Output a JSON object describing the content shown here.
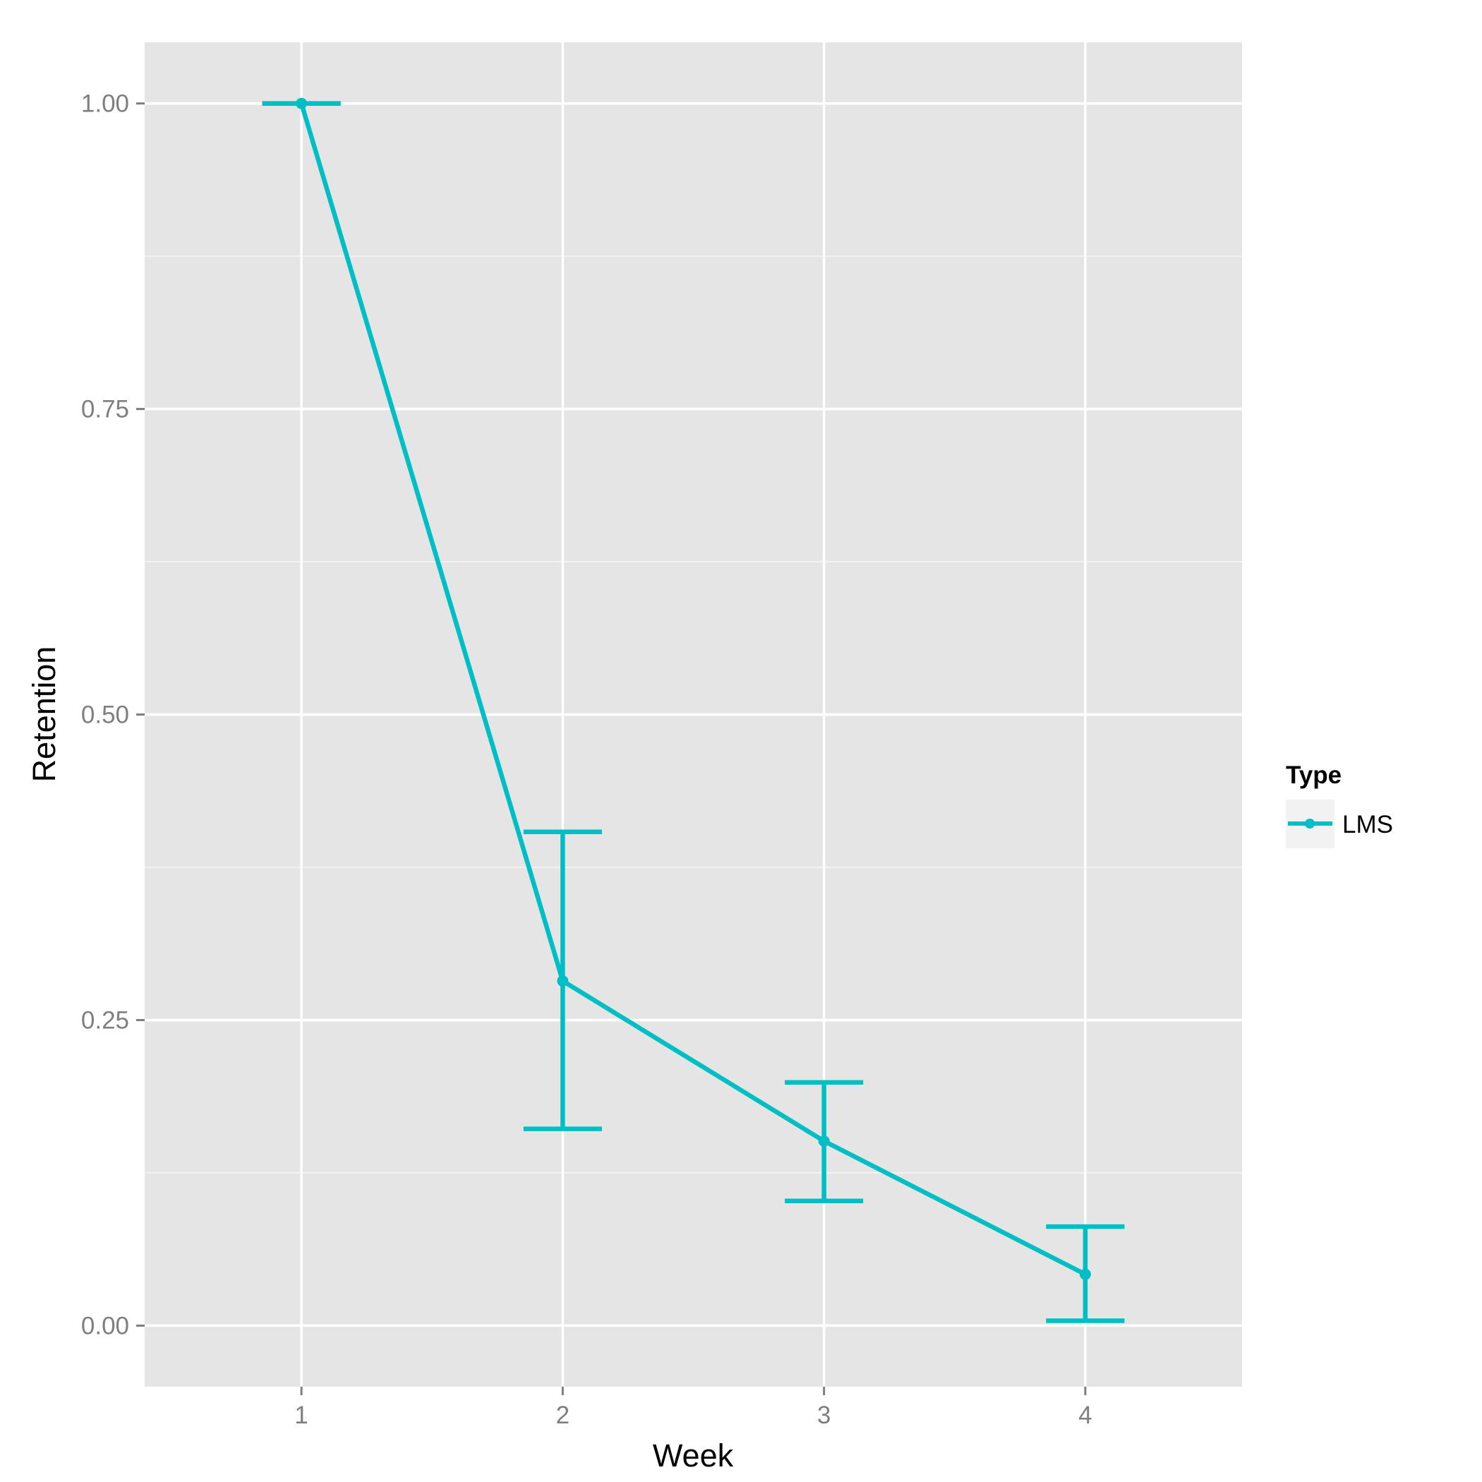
{
  "chart_data": {
    "type": "line",
    "xlabel": "Week",
    "ylabel": "Retention",
    "x": [
      1,
      2,
      3,
      4
    ],
    "xticks": [
      "1",
      "2",
      "3",
      "4"
    ],
    "yticks": [
      "0.00",
      "0.25",
      "0.50",
      "0.75",
      "1.00"
    ],
    "ytick_values": [
      0,
      0.25,
      0.5,
      0.75,
      1.0
    ],
    "xlim": [
      0.4,
      4.6
    ],
    "ylim": [
      -0.05,
      1.05
    ],
    "grid": true,
    "legend": {
      "title": "Type",
      "position": "right"
    },
    "series": [
      {
        "name": "LMS",
        "color": "#00BFC4",
        "values": [
          1.0,
          0.282,
          0.151,
          0.042
        ],
        "error_low": [
          1.0,
          0.161,
          0.102,
          0.004
        ],
        "error_high": [
          1.0,
          0.404,
          0.199,
          0.081
        ]
      }
    ]
  }
}
